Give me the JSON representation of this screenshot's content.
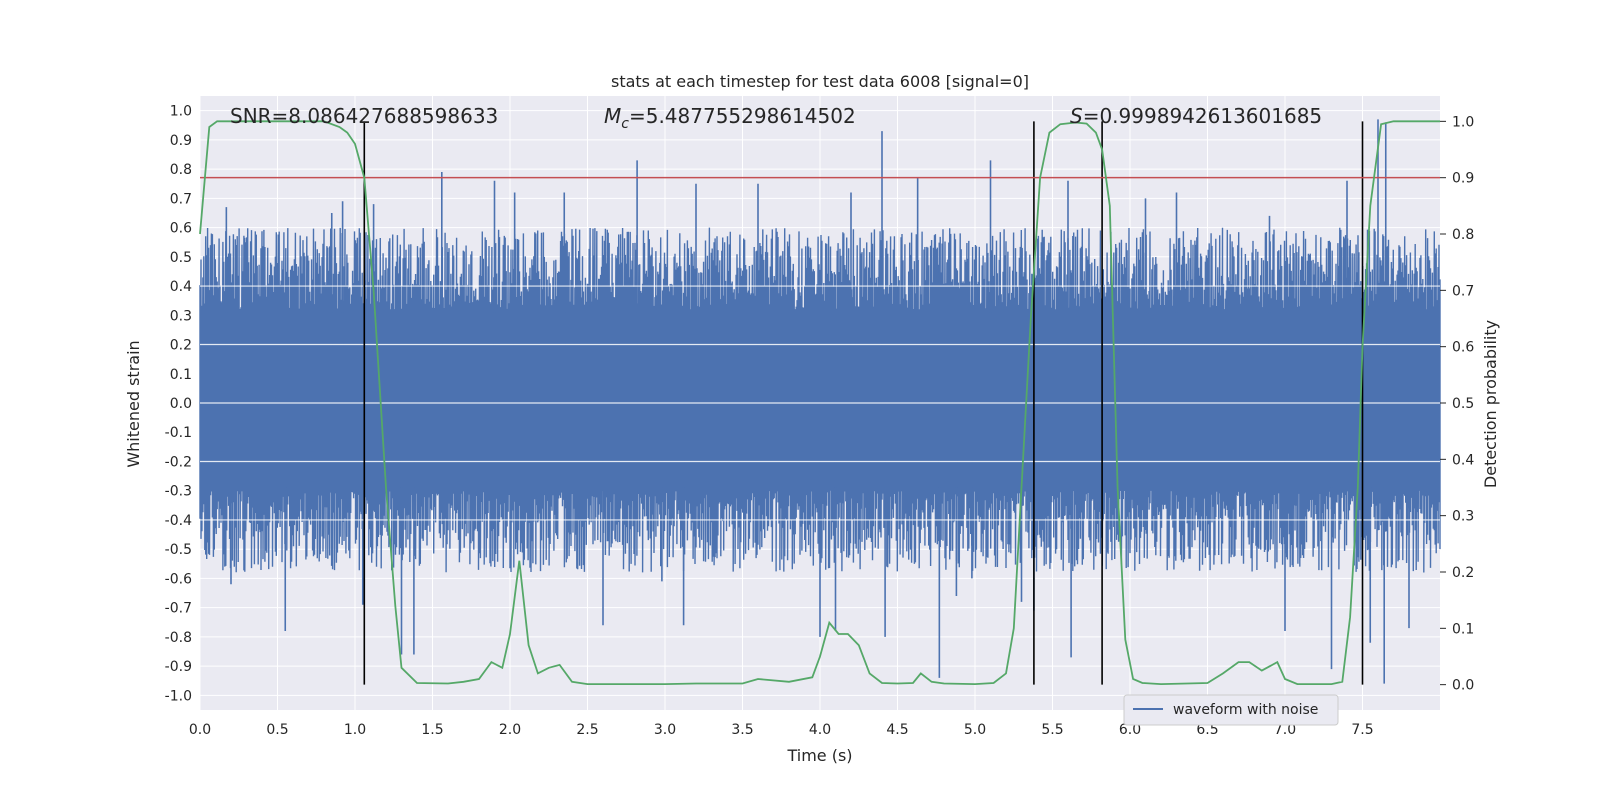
{
  "chart_data": {
    "type": "line",
    "title": "stats at each timestep for test data 6008 [signal=0]",
    "xlabel": "Time (s)",
    "ylabel_left": "Whitened strain",
    "ylabel_right": "Detection probability",
    "xlim": [
      0.0,
      8.0
    ],
    "ylim_left": [
      -1.05,
      1.05
    ],
    "ylim_right": [
      -0.045,
      1.045
    ],
    "x_ticks": [
      "0.0",
      "0.5",
      "1.0",
      "1.5",
      "2.0",
      "2.5",
      "3.0",
      "3.5",
      "4.0",
      "4.5",
      "5.0",
      "5.5",
      "6.0",
      "6.5",
      "7.0",
      "7.5"
    ],
    "y_left_ticks": [
      "1.0",
      "0.9",
      "0.8",
      "0.7",
      "0.6",
      "0.5",
      "0.4",
      "0.3",
      "0.2",
      "0.1",
      "0.0",
      "-0.1",
      "-0.2",
      "-0.3",
      "-0.4",
      "-0.5",
      "-0.6",
      "-0.7",
      "-0.8",
      "-0.9",
      "-1.0"
    ],
    "y_right_ticks": [
      "1.0",
      "0.9",
      "0.8",
      "0.7",
      "0.6",
      "0.5",
      "0.4",
      "0.3",
      "0.2",
      "0.1",
      "0.0"
    ],
    "grid": true,
    "legend": {
      "position": "bottom-center-right",
      "entries": [
        "waveform with noise"
      ]
    },
    "annotations": {
      "snr": "SNR=8.086427688598633",
      "mc_symbol": "M",
      "mc_sub": "c",
      "mc_value": "=5.487755298614502",
      "s_symbol": "S",
      "s_value": "=0.9998942613601685"
    },
    "threshold": {
      "axis": "right",
      "value": 0.9,
      "color": "#c44e52"
    },
    "vertical_lines": [
      1.06,
      5.38,
      5.82,
      7.5
    ],
    "series": [
      {
        "name": "waveform with noise",
        "axis": "left",
        "color": "#4c72b0",
        "duration": 8.0,
        "noise_upper_base": 0.4,
        "noise_lower_base": -0.38,
        "spikes": [
          [
            0.17,
            0.67
          ],
          [
            0.2,
            -0.62
          ],
          [
            0.55,
            -0.78
          ],
          [
            0.85,
            0.65
          ],
          [
            0.92,
            0.69
          ],
          [
            1.05,
            -0.69
          ],
          [
            1.12,
            0.68
          ],
          [
            1.3,
            -0.86
          ],
          [
            1.38,
            -0.86
          ],
          [
            1.56,
            0.79
          ],
          [
            1.9,
            0.76
          ],
          [
            2.03,
            0.72
          ],
          [
            2.35,
            0.72
          ],
          [
            2.6,
            -0.76
          ],
          [
            2.82,
            0.83
          ],
          [
            2.98,
            -0.61
          ],
          [
            3.12,
            -0.76
          ],
          [
            3.2,
            0.75
          ],
          [
            3.6,
            0.75
          ],
          [
            4.0,
            -0.8
          ],
          [
            4.1,
            -0.78
          ],
          [
            4.2,
            0.72
          ],
          [
            4.4,
            0.93
          ],
          [
            4.42,
            -0.8
          ],
          [
            4.63,
            0.77
          ],
          [
            4.77,
            -0.94
          ],
          [
            4.88,
            -0.66
          ],
          [
            4.98,
            -0.6
          ],
          [
            5.1,
            0.83
          ],
          [
            5.3,
            -0.68
          ],
          [
            5.38,
            -0.71
          ],
          [
            5.6,
            0.76
          ],
          [
            5.62,
            -0.87
          ],
          [
            6.1,
            0.7
          ],
          [
            6.3,
            0.72
          ],
          [
            6.9,
            0.64
          ],
          [
            7.0,
            -0.78
          ],
          [
            7.3,
            -0.91
          ],
          [
            7.4,
            0.76
          ],
          [
            7.55,
            -0.82
          ],
          [
            7.6,
            0.97
          ],
          [
            7.64,
            -0.96
          ],
          [
            7.65,
            0.96
          ],
          [
            7.8,
            -0.77
          ]
        ]
      },
      {
        "name": "detection probability",
        "axis": "right",
        "color": "#55a868",
        "x": [
          0.0,
          0.06,
          0.11,
          0.5,
          0.8,
          0.9,
          0.95,
          1.0,
          1.06,
          1.12,
          1.2,
          1.26,
          1.3,
          1.4,
          1.6,
          1.7,
          1.8,
          1.88,
          1.95,
          2.0,
          2.06,
          2.12,
          2.18,
          2.25,
          2.32,
          2.4,
          2.5,
          2.8,
          3.0,
          3.2,
          3.5,
          3.6,
          3.8,
          3.95,
          4.0,
          4.06,
          4.12,
          4.18,
          4.25,
          4.32,
          4.4,
          4.5,
          4.6,
          4.65,
          4.72,
          4.8,
          5.0,
          5.12,
          5.2,
          5.25,
          5.3,
          5.36,
          5.42,
          5.48,
          5.55,
          5.65,
          5.72,
          5.78,
          5.82,
          5.87,
          5.92,
          5.97,
          6.02,
          6.08,
          6.2,
          6.5,
          6.6,
          6.7,
          6.77,
          6.85,
          6.95,
          7.0,
          7.08,
          7.2,
          7.3,
          7.37,
          7.42,
          7.47,
          7.5,
          7.55,
          7.62,
          7.7,
          8.0
        ],
        "y": [
          0.8,
          0.99,
          1.0,
          1.0,
          1.0,
          0.99,
          0.98,
          0.96,
          0.9,
          0.7,
          0.35,
          0.14,
          0.03,
          0.003,
          0.002,
          0.005,
          0.01,
          0.04,
          0.03,
          0.09,
          0.22,
          0.07,
          0.02,
          0.03,
          0.035,
          0.005,
          0.001,
          0.001,
          0.001,
          0.002,
          0.002,
          0.01,
          0.005,
          0.013,
          0.05,
          0.11,
          0.09,
          0.09,
          0.07,
          0.02,
          0.003,
          0.002,
          0.003,
          0.02,
          0.005,
          0.002,
          0.001,
          0.003,
          0.02,
          0.1,
          0.35,
          0.65,
          0.9,
          0.98,
          0.995,
          0.998,
          0.996,
          0.98,
          0.95,
          0.85,
          0.35,
          0.08,
          0.01,
          0.003,
          0.001,
          0.003,
          0.02,
          0.04,
          0.04,
          0.025,
          0.04,
          0.01,
          0.001,
          0.001,
          0.001,
          0.005,
          0.12,
          0.35,
          0.6,
          0.85,
          0.995,
          1.0,
          1.0
        ]
      }
    ]
  }
}
